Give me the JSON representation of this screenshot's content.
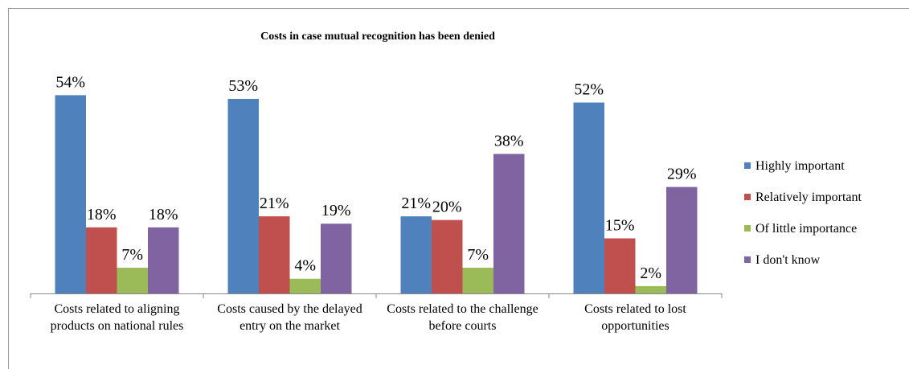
{
  "chart_data": {
    "type": "bar",
    "title": "Costs in case mutual recognition has been denied",
    "categories": [
      "Costs related to aligning products on national rules",
      "Costs caused by the delayed entry on the market",
      "Costs related to the challenge before courts",
      "Costs related to lost opportunities"
    ],
    "series": [
      {
        "name": "Highly important",
        "color": "#4f81bd",
        "values": [
          54,
          53,
          21,
          52
        ],
        "value_labels": [
          "54%",
          "53%",
          "21%",
          "52%"
        ]
      },
      {
        "name": "Relatively important",
        "color": "#c0504d",
        "values": [
          18,
          21,
          20,
          15
        ],
        "value_labels": [
          "18%",
          "21%",
          "20%",
          "15%"
        ]
      },
      {
        "name": "Of little importance",
        "color": "#9bbb59",
        "values": [
          7,
          4,
          7,
          2
        ],
        "value_labels": [
          "7%",
          "4%",
          "7%",
          "2%"
        ]
      },
      {
        "name": "I don't know",
        "color": "#8064a2",
        "values": [
          18,
          19,
          38,
          29
        ],
        "value_labels": [
          "18%",
          "19%",
          "38%",
          "29%"
        ]
      }
    ],
    "ylim": [
      0,
      60
    ],
    "legend": "right"
  }
}
